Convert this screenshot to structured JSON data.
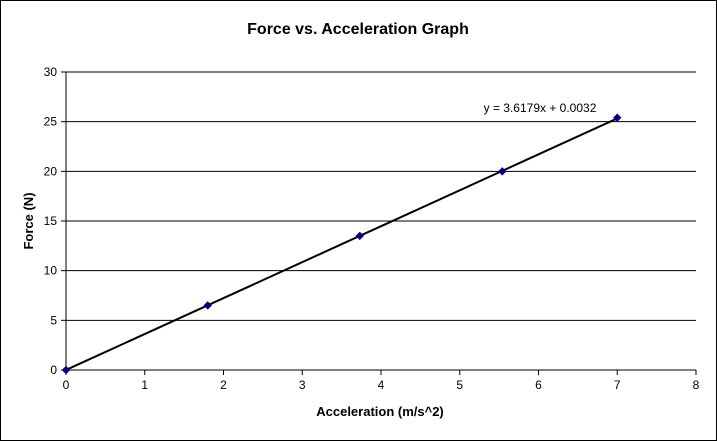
{
  "chart_data": {
    "type": "scatter",
    "title": "Force vs. Acceleration Graph",
    "xlabel": "Acceleration (m/s^2)",
    "ylabel": "Force (N)",
    "xlim": [
      0,
      8
    ],
    "ylim": [
      0,
      30
    ],
    "x_ticks": [
      0,
      1,
      2,
      3,
      4,
      5,
      6,
      7,
      8
    ],
    "y_ticks": [
      0,
      5,
      10,
      15,
      20,
      25,
      30
    ],
    "grid": "horizontal",
    "legend": "none",
    "series": [
      {
        "x": [
          0,
          1.8,
          3.73,
          5.54,
          7.0
        ],
        "y": [
          0,
          6.5,
          13.5,
          20.0,
          25.4
        ],
        "color": "#000080",
        "marker": "diamond"
      }
    ],
    "trendline": {
      "type": "linear",
      "slope": 3.6179,
      "intercept": 0.0032,
      "x_range": [
        0,
        7.0
      ],
      "equation_label": "y = 3.6179x + 0.0032",
      "color": "#000000"
    }
  }
}
